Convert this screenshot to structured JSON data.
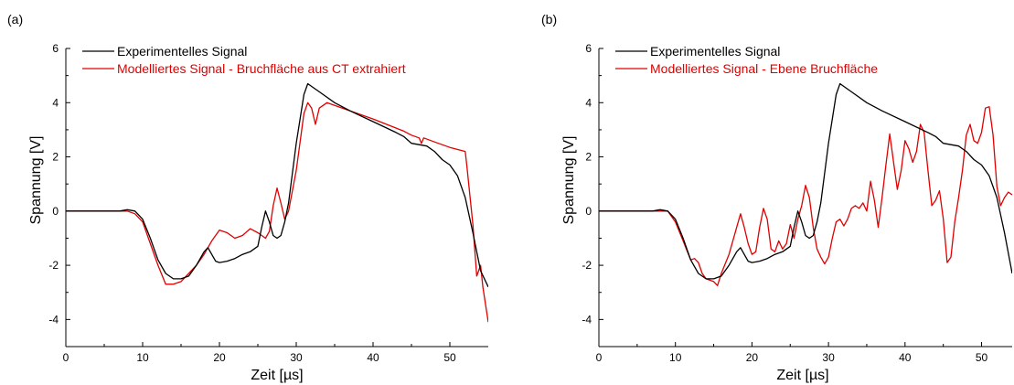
{
  "chart_data": [
    {
      "type": "line",
      "panel_label": "(a)",
      "xlabel": "Zeit [µs]",
      "ylabel": "Spannung [V]",
      "xlim": [
        0,
        55
      ],
      "ylim": [
        -5,
        6
      ],
      "xticks": [
        0,
        10,
        20,
        30,
        40,
        50
      ],
      "yticks": [
        -4,
        -2,
        0,
        2,
        4,
        6
      ],
      "grid": false,
      "legend_position": "top-left",
      "series": [
        {
          "name": "Experimentelles Signal",
          "color": "#000000",
          "x": [
            0,
            7,
            8,
            9,
            10,
            11,
            12,
            13,
            14,
            15,
            16,
            17,
            18,
            18.5,
            19,
            19.5,
            20,
            21,
            22,
            23,
            24,
            25,
            25.5,
            26,
            26.5,
            27,
            27.5,
            28,
            28.5,
            29,
            30,
            31,
            31.5,
            32,
            33,
            35,
            37,
            40,
            43,
            44,
            45,
            46,
            47,
            48,
            49,
            50,
            51,
            52,
            53,
            54,
            55
          ],
          "y": [
            0,
            0,
            0.05,
            0,
            -0.3,
            -1.0,
            -1.8,
            -2.3,
            -2.5,
            -2.5,
            -2.4,
            -2.0,
            -1.5,
            -1.35,
            -1.6,
            -1.85,
            -1.9,
            -1.85,
            -1.75,
            -1.6,
            -1.5,
            -1.3,
            -0.6,
            0.0,
            -0.4,
            -0.9,
            -1.0,
            -0.9,
            -0.4,
            0.3,
            2.5,
            4.3,
            4.7,
            4.6,
            4.4,
            4.0,
            3.7,
            3.3,
            2.9,
            2.75,
            2.5,
            2.45,
            2.4,
            2.2,
            1.9,
            1.7,
            1.3,
            0.5,
            -0.8,
            -2.2,
            -2.8
          ]
        },
        {
          "name": "Modelliertes Signal - Bruchfläche aus CT extrahiert",
          "color": "#e00000",
          "x": [
            0,
            7,
            8,
            9,
            10,
            11,
            12,
            13,
            14,
            15,
            16,
            17,
            18,
            19,
            20,
            21,
            22,
            23,
            24,
            25,
            26,
            26.5,
            27,
            27.5,
            28,
            28.5,
            29,
            30,
            31,
            31.5,
            32,
            32.5,
            33,
            34,
            36,
            40,
            44,
            45,
            46,
            46.3,
            46.6,
            48,
            50,
            52,
            52.2,
            53,
            53.5,
            54,
            54.3,
            55
          ],
          "y": [
            0,
            0,
            0,
            -0.1,
            -0.4,
            -1.2,
            -2.0,
            -2.7,
            -2.7,
            -2.6,
            -2.3,
            -2.0,
            -1.6,
            -1.1,
            -0.7,
            -0.8,
            -1.0,
            -0.9,
            -0.65,
            -0.8,
            -1.0,
            -0.75,
            0.2,
            0.85,
            0.3,
            -0.3,
            0.0,
            1.5,
            3.6,
            4.0,
            3.8,
            3.2,
            3.8,
            4.0,
            3.8,
            3.4,
            2.95,
            2.8,
            2.7,
            2.5,
            2.7,
            2.55,
            2.35,
            2.2,
            1.7,
            -0.5,
            -2.4,
            -2.0,
            -2.8,
            -4.1
          ]
        }
      ]
    },
    {
      "type": "line",
      "panel_label": "(b)",
      "xlabel": "Zeit [µs]",
      "ylabel": "Spannung [V]",
      "xlim": [
        0,
        54
      ],
      "ylim": [
        -5,
        6
      ],
      "xticks": [
        0,
        10,
        20,
        30,
        40,
        50
      ],
      "yticks": [
        -4,
        -2,
        0,
        2,
        4,
        6
      ],
      "grid": false,
      "legend_position": "top-left",
      "series": [
        {
          "name": "Experimentelles Signal",
          "color": "#000000",
          "x": [
            0,
            7,
            8,
            9,
            10,
            11,
            12,
            13,
            14,
            15,
            16,
            17,
            18,
            18.5,
            19,
            19.5,
            20,
            21,
            22,
            23,
            24,
            25,
            25.5,
            26,
            26.5,
            27,
            27.5,
            28,
            28.5,
            29,
            30,
            31,
            31.5,
            32,
            33,
            35,
            37,
            40,
            43,
            44,
            45,
            46,
            47,
            48,
            49,
            50,
            51,
            52,
            53,
            54
          ],
          "y": [
            0,
            0,
            0.05,
            0,
            -0.3,
            -1.0,
            -1.8,
            -2.3,
            -2.5,
            -2.5,
            -2.4,
            -2.0,
            -1.5,
            -1.35,
            -1.6,
            -1.85,
            -1.9,
            -1.85,
            -1.75,
            -1.6,
            -1.5,
            -1.3,
            -0.6,
            0.0,
            -0.4,
            -0.9,
            -1.0,
            -0.9,
            -0.4,
            0.3,
            2.5,
            4.3,
            4.7,
            4.6,
            4.4,
            4.0,
            3.7,
            3.3,
            2.9,
            2.75,
            2.5,
            2.45,
            2.4,
            2.2,
            1.9,
            1.7,
            1.3,
            0.5,
            -0.8,
            -2.3
          ]
        },
        {
          "name": "Modelliertes Signal - Ebene Bruchfläche",
          "color": "#e00000",
          "x": [
            0,
            7,
            8,
            9,
            10,
            11,
            12,
            12.5,
            13,
            13.5,
            14,
            15,
            15.5,
            16,
            17,
            18,
            18.5,
            19,
            19.5,
            20,
            20.5,
            21,
            21.5,
            22,
            22.5,
            23,
            23.5,
            24,
            24.5,
            25,
            25.5,
            26,
            26.5,
            27,
            27.5,
            28,
            28.5,
            29,
            29.5,
            30,
            30.5,
            31,
            31.5,
            32,
            32.5,
            33,
            33.5,
            34,
            34.5,
            35,
            35.5,
            36,
            36.5,
            37,
            37.5,
            38,
            38.5,
            39,
            39.5,
            40,
            40.5,
            41,
            41.5,
            42,
            42.5,
            43,
            43.5,
            44,
            44.5,
            45,
            45.5,
            46,
            46.5,
            47,
            47.5,
            48,
            48.5,
            49,
            49.5,
            50,
            50.5,
            51,
            51.5,
            52,
            52.5,
            53,
            53.5,
            54
          ],
          "y": [
            0,
            0,
            0,
            0,
            -0.4,
            -1.1,
            -1.8,
            -1.75,
            -1.9,
            -2.3,
            -2.5,
            -2.6,
            -2.75,
            -2.3,
            -1.6,
            -0.6,
            -0.1,
            -0.6,
            -1.2,
            -1.6,
            -1.5,
            -0.6,
            0.1,
            -0.3,
            -1.4,
            -1.5,
            -1.1,
            -1.4,
            -1.2,
            -0.5,
            -1.0,
            -0.3,
            0.2,
            0.95,
            0.5,
            -0.6,
            -1.4,
            -1.7,
            -1.95,
            -1.7,
            -1.0,
            -0.4,
            -0.3,
            -0.55,
            -0.3,
            0.1,
            0.2,
            0.1,
            0.3,
            0.0,
            1.1,
            0.4,
            -0.6,
            0.5,
            1.7,
            2.85,
            1.8,
            0.8,
            1.5,
            2.6,
            2.3,
            1.8,
            2.2,
            3.2,
            2.9,
            1.5,
            0.2,
            0.4,
            0.75,
            -0.3,
            -1.9,
            -1.7,
            -0.4,
            0.5,
            1.5,
            2.8,
            3.2,
            2.6,
            2.5,
            2.9,
            3.8,
            3.85,
            2.8,
            0.9,
            0.2,
            0.5,
            0.7,
            0.6
          ]
        }
      ]
    }
  ]
}
